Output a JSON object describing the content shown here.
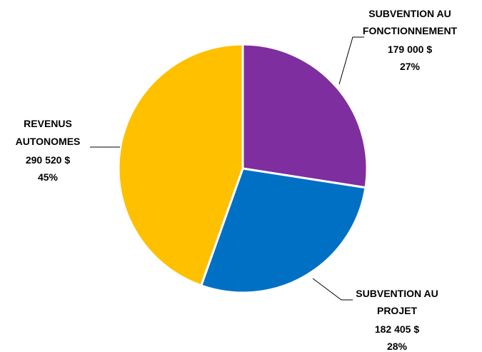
{
  "chart_data": {
    "type": "pie",
    "start": "top",
    "direction": "clockwise",
    "slices": [
      {
        "label_lines": [
          "SUBVENTION AU",
          "FONCTIONNEMENT"
        ],
        "amount": "179 000  $",
        "percent": "27%",
        "value": 179000,
        "color": "#7E2E9F"
      },
      {
        "label_lines": [
          "SUBVENTION AU",
          "PROJET"
        ],
        "amount": "182 405  $",
        "percent": "28%",
        "value": 182405,
        "color": "#0070C4"
      },
      {
        "label_lines": [
          "REVENUS",
          "AUTONOMES"
        ],
        "amount": "290 520  $",
        "percent": "45%",
        "value": 290520,
        "color": "#FFC000"
      }
    ]
  }
}
